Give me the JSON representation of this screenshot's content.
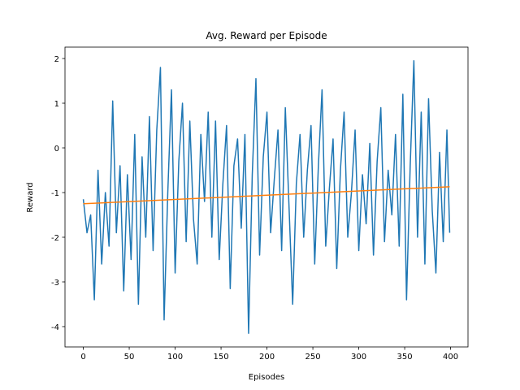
{
  "chart_data": {
    "type": "line",
    "title": "Avg. Reward per Episode",
    "x_label": "Episodes",
    "y_label": "Reward",
    "xlim": [
      -19.95,
      418.95
    ],
    "ylim": [
      -4.455,
      2.255
    ],
    "xticks": [
      0,
      50,
      100,
      150,
      200,
      250,
      300,
      350,
      400
    ],
    "yticks": [
      -4,
      -3,
      -2,
      -1,
      0,
      1,
      2
    ],
    "series": [
      {
        "color": "#1f77b4",
        "x": [
          0,
          4,
          8,
          12,
          16,
          20,
          24,
          28,
          32,
          36,
          40,
          44,
          48,
          52,
          56,
          60,
          64,
          68,
          72,
          76,
          80,
          84,
          88,
          92,
          96,
          100,
          104,
          108,
          112,
          116,
          120,
          124,
          128,
          132,
          136,
          140,
          144,
          148,
          152,
          156,
          160,
          164,
          168,
          172,
          176,
          180,
          184,
          188,
          192,
          196,
          200,
          204,
          208,
          212,
          216,
          220,
          224,
          228,
          232,
          236,
          240,
          244,
          248,
          252,
          256,
          260,
          264,
          268,
          272,
          276,
          280,
          284,
          288,
          292,
          296,
          300,
          304,
          308,
          312,
          316,
          320,
          324,
          328,
          332,
          336,
          340,
          344,
          348,
          352,
          356,
          360,
          364,
          368,
          372,
          376,
          380,
          384,
          388,
          392,
          396,
          399
        ],
        "values": [
          -1.15,
          -1.9,
          -1.5,
          -3.4,
          -0.5,
          -2.6,
          -1.0,
          -2.2,
          1.05,
          -1.9,
          -0.4,
          -3.2,
          -0.6,
          -2.5,
          0.3,
          -3.5,
          -0.2,
          -2.0,
          0.7,
          -2.3,
          0.4,
          1.8,
          -3.85,
          -1.0,
          1.3,
          -2.8,
          -0.3,
          1.0,
          -2.1,
          0.6,
          -1.6,
          -2.6,
          0.3,
          -1.2,
          0.8,
          -2.0,
          0.6,
          -2.5,
          -0.8,
          0.5,
          -3.15,
          -0.4,
          0.2,
          -1.8,
          0.3,
          -4.15,
          -0.6,
          1.55,
          -2.4,
          -0.2,
          0.8,
          -1.9,
          -0.7,
          0.4,
          -2.3,
          0.9,
          -1.3,
          -3.5,
          -0.8,
          0.3,
          -2.0,
          -0.5,
          0.5,
          -2.6,
          -0.4,
          1.3,
          -2.2,
          -0.9,
          0.2,
          -2.7,
          -0.5,
          0.8,
          -2.0,
          -1.0,
          0.4,
          -2.3,
          -0.6,
          -1.7,
          0.1,
          -2.4,
          -0.3,
          0.9,
          -2.1,
          -0.5,
          -1.5,
          0.3,
          -2.2,
          1.2,
          -3.4,
          -0.4,
          1.95,
          -2.0,
          0.8,
          -2.6,
          1.1,
          -1.4,
          -2.8,
          -0.1,
          -2.1,
          0.4,
          -1.9
        ]
      },
      {
        "color": "#ff7f0e",
        "x": [
          0,
          399
        ],
        "values": [
          -1.25,
          -0.87
        ]
      }
    ]
  }
}
